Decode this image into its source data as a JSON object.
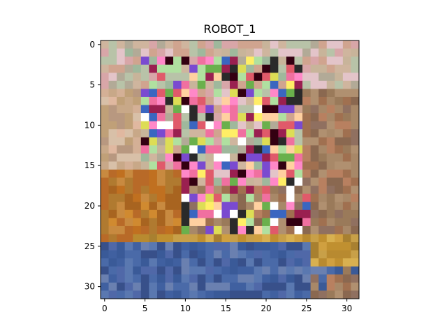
{
  "chart_data": {
    "type": "heatmap",
    "title": "ROBOT_1",
    "xlim": [
      -0.5,
      31.5
    ],
    "ylim": [
      31.5,
      -0.5
    ],
    "x_ticks": [
      0,
      5,
      10,
      15,
      20,
      25,
      30
    ],
    "y_ticks": [
      0,
      5,
      10,
      15,
      20,
      25,
      30
    ],
    "grid": false,
    "rows": 32,
    "cols": 32,
    "pixel_data_note": "",
    "palette_regions": [
      {
        "name": "sky-top",
        "rows": [
          0,
          6
        ],
        "colors": [
          "#c8b49a",
          "#d8a6a8",
          "#b8c3a8",
          "#e3c4c9",
          "#9fb89c",
          "#cfb59e",
          "#d0a48f",
          "#b2aa97"
        ]
      },
      {
        "name": "noise-center",
        "rows": [
          2,
          18
        ],
        "colors": [
          "#ff88c8",
          "#2a2a2a",
          "#ffee66",
          "#9a2050",
          "#6ab04c",
          "#ffffff",
          "#330011",
          "#7a4ad0",
          "#e05a6a",
          "#b0e0a0",
          "#ffd0a0",
          "#3a66c0",
          "#f070a0",
          "#dddd55"
        ]
      },
      {
        "name": "left-warm",
        "rows": [
          6,
          18
        ],
        "colors": [
          "#c8a888",
          "#d4b096",
          "#b89880",
          "#e0b8a0",
          "#c0a078",
          "#d8c0a8"
        ]
      },
      {
        "name": "orange-band",
        "rows": [
          15,
          24
        ],
        "colors": [
          "#c07020",
          "#b86a28",
          "#d08a30",
          "#a86420",
          "#c88a40",
          "#b07a30"
        ]
      },
      {
        "name": "golden-band",
        "rows": [
          24,
          28
        ],
        "colors": [
          "#c09030",
          "#d0a040",
          "#b88a30",
          "#c8a048",
          "#a88030",
          "#d8b050"
        ]
      },
      {
        "name": "right-warm",
        "rows": [
          8,
          30
        ],
        "colors": [
          "#a07050",
          "#b88060",
          "#907060",
          "#a88868",
          "#8a6850",
          "#b09070",
          "#9a7a5a"
        ]
      },
      {
        "name": "blue-bottom",
        "rows": [
          24,
          31
        ],
        "colors": [
          "#4a6aa8",
          "#3a5a98",
          "#5a78b0",
          "#4060a0",
          "#6a80b0",
          "#38508a",
          "#5068a8"
        ]
      }
    ]
  }
}
